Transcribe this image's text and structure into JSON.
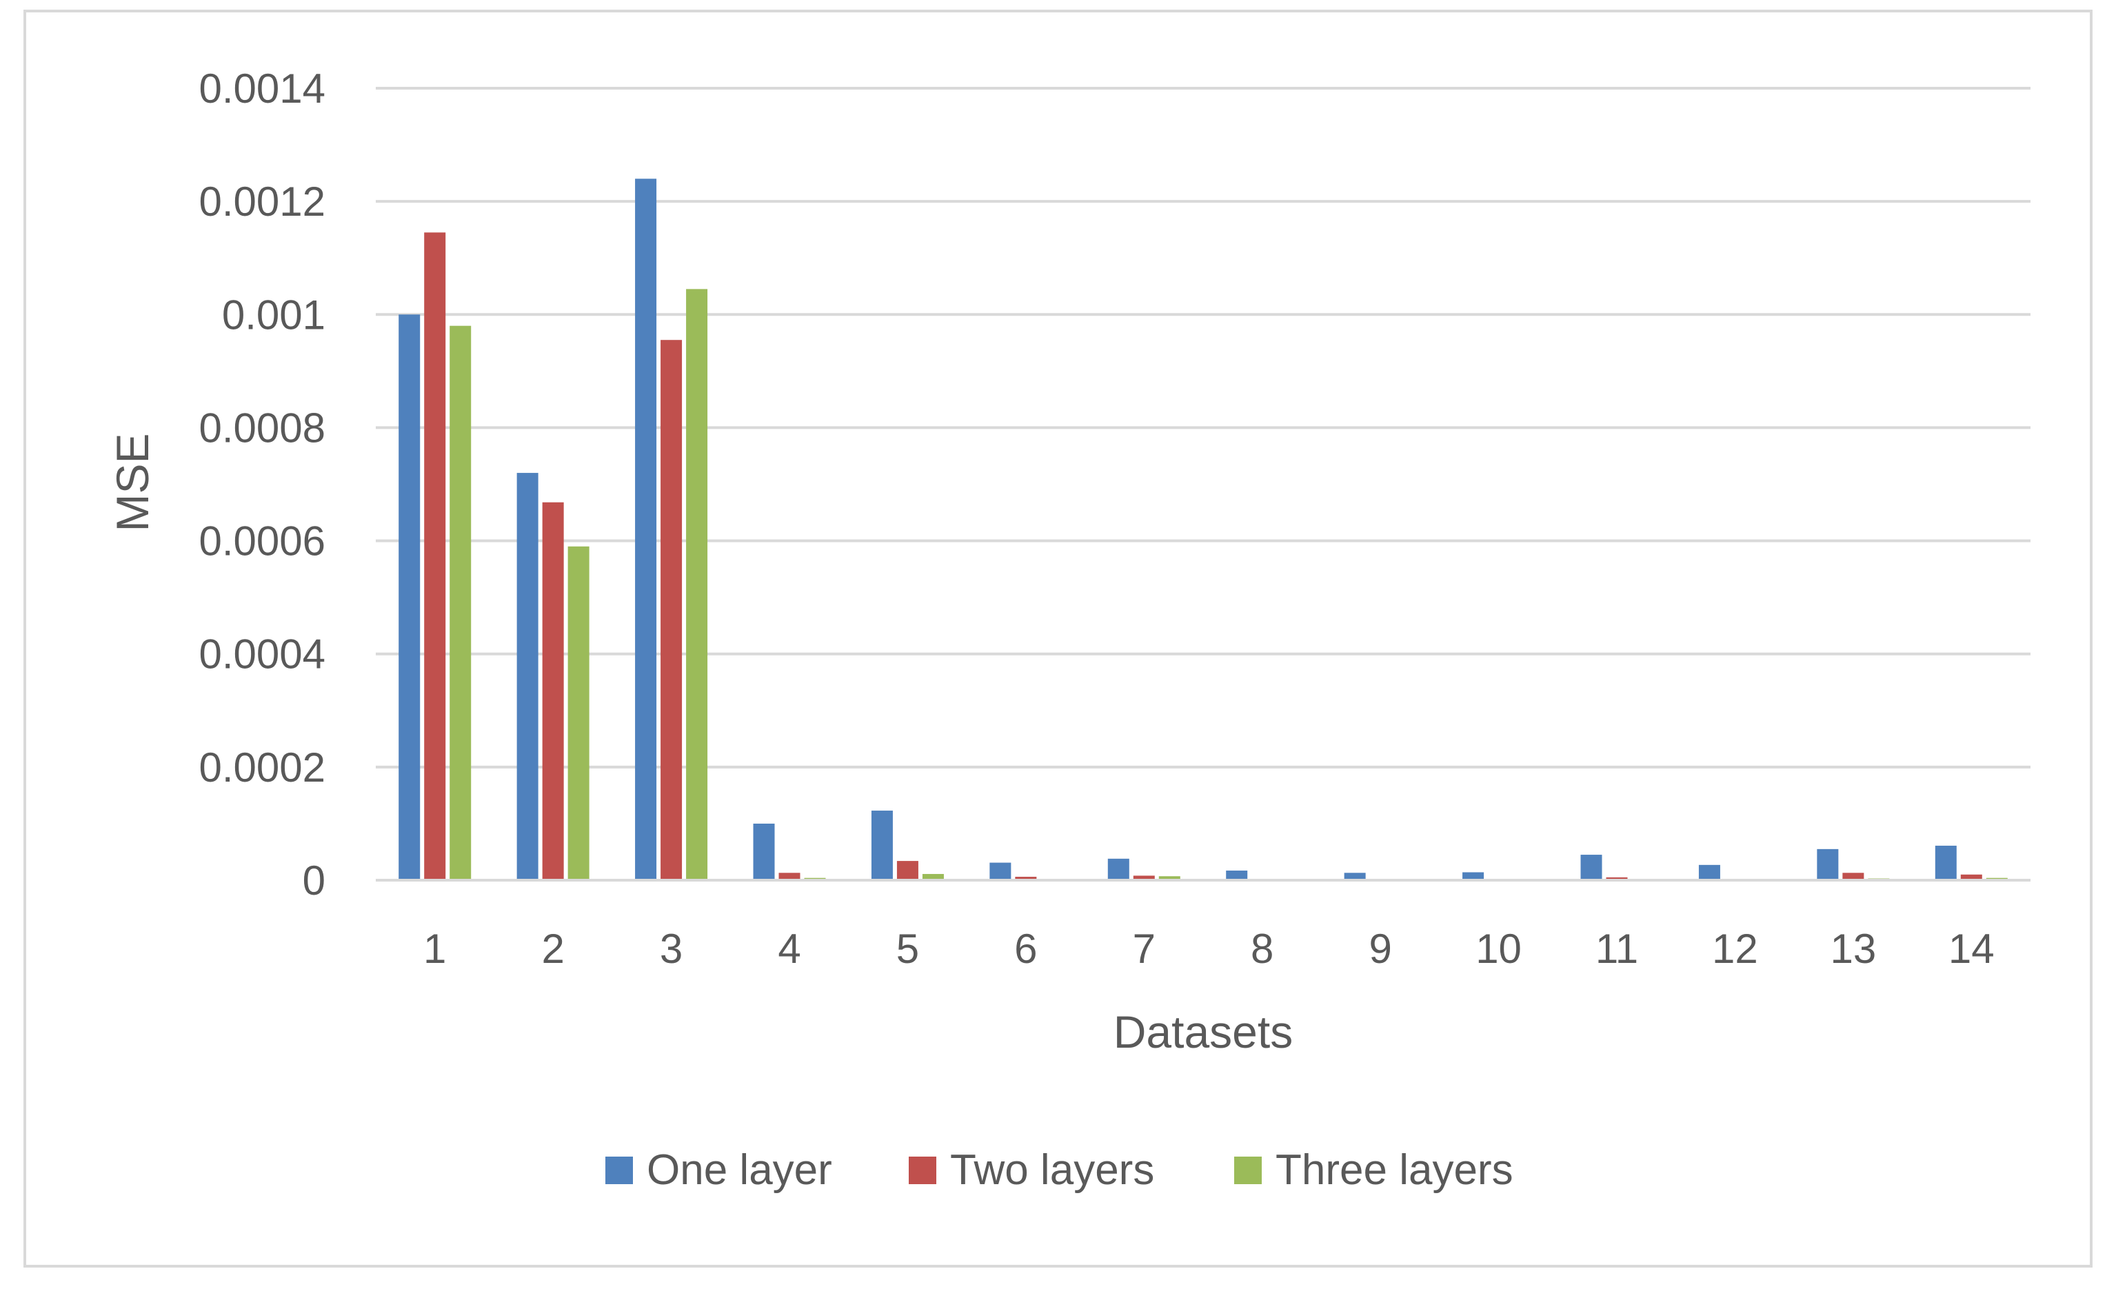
{
  "chart_data": {
    "type": "bar",
    "title": "",
    "xlabel": "Datasets",
    "ylabel": "MSE",
    "ylim": [
      0,
      0.0014
    ],
    "yticks": [
      "0",
      "0.0002",
      "0.0004",
      "0.0006",
      "0.0008",
      "0.001",
      "0.0012",
      "0.0014"
    ],
    "ytick_values": [
      0,
      0.0002,
      0.0004,
      0.0006,
      0.0008,
      0.001,
      0.0012,
      0.0014
    ],
    "categories": [
      "1",
      "2",
      "3",
      "4",
      "5",
      "6",
      "7",
      "8",
      "9",
      "10",
      "11",
      "12",
      "13",
      "14"
    ],
    "series": [
      {
        "name": "One layer",
        "color": "#4f81bd",
        "values": [
          0.001,
          0.00072,
          0.00124,
          0.0001,
          0.000123,
          3.1e-05,
          3.8e-05,
          1.7e-05,
          1.3e-05,
          1.4e-05,
          4.5e-05,
          2.7e-05,
          5.5e-05,
          6.1e-05
        ]
      },
      {
        "name": "Two layers",
        "color": "#c0504d",
        "values": [
          0.001145,
          0.000668,
          0.000955,
          1.3e-05,
          3.4e-05,
          6e-06,
          8e-06,
          1e-06,
          1e-06,
          1e-06,
          5e-06,
          1e-06,
          1.3e-05,
          1e-05
        ]
      },
      {
        "name": "Three layers",
        "color": "#9bbb59",
        "values": [
          0.00098,
          0.00059,
          0.001045,
          4e-06,
          1.1e-05,
          1e-06,
          7e-06,
          5e-07,
          5e-07,
          5e-07,
          1e-06,
          5e-07,
          3e-06,
          4e-06
        ]
      }
    ],
    "grid": true,
    "legend_position": "bottom"
  }
}
